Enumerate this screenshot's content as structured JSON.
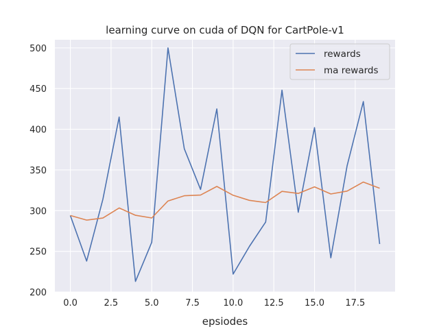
{
  "chart_data": {
    "type": "line",
    "title": "learning curve on cuda of DQN for CartPole-v1",
    "xlabel": "epsiodes",
    "ylabel": "",
    "xlim": [
      -0.95,
      19.95
    ],
    "ylim": [
      200,
      510
    ],
    "xticks": [
      0,
      2.5,
      5,
      7.5,
      10,
      12.5,
      15,
      17.5
    ],
    "xtick_labels": [
      "0.0",
      "2.5",
      "5.0",
      "7.5",
      "10.0",
      "12.5",
      "15.0",
      "17.5"
    ],
    "yticks": [
      200,
      250,
      300,
      350,
      400,
      450,
      500
    ],
    "ytick_labels": [
      "200",
      "250",
      "300",
      "350",
      "400",
      "450",
      "500"
    ],
    "grid": true,
    "legend_position": "top-right",
    "x": [
      0,
      1,
      2,
      3,
      4,
      5,
      6,
      7,
      8,
      9,
      10,
      11,
      12,
      13,
      14,
      15,
      16,
      17,
      18,
      19
    ],
    "series": [
      {
        "name": "rewards",
        "color": "#4c72b0",
        "values": [
          294,
          238,
          314,
          415,
          213,
          261,
          500,
          376,
          326,
          425,
          222,
          256,
          286,
          448,
          298,
          402,
          242,
          355,
          434,
          259
        ]
      },
      {
        "name": "ma rewards",
        "color": "#dd8452",
        "values": [
          294,
          288.4,
          290.9,
          303.3,
          294.3,
          291.0,
          311.9,
          318.3,
          319.1,
          329.7,
          318.9,
          312.6,
          309.9,
          323.7,
          321.1,
          329.2,
          320.5,
          324.0,
          335.1,
          327.5
        ]
      }
    ]
  }
}
